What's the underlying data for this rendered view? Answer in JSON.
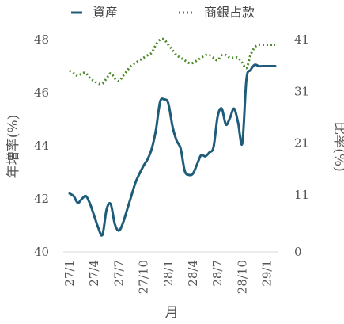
{
  "chart_data": {
    "type": "line",
    "xlabel": "月",
    "ylabel_left": "年増率(%)",
    "ylabel_right": "比率(%)",
    "x_tick_labels": [
      "27/1",
      "27/4",
      "27/7",
      "27/10",
      "28/1",
      "28/4",
      "28/7",
      "28/10",
      "29/1"
    ],
    "left_axis": {
      "min": 40,
      "max": 48,
      "ticks": [
        40,
        42,
        44,
        46,
        48
      ]
    },
    "right_axis": {
      "min": 0,
      "max": 41,
      "ticks": [
        0,
        11,
        21,
        31,
        41
      ]
    },
    "legend_position": "top",
    "grid": false,
    "series": [
      {
        "name": "資産",
        "axis": "left",
        "style": "solid",
        "color": "#1f5c7a",
        "x": [
          0,
          0.5,
          1,
          1.5,
          2,
          2.5,
          3,
          3.5,
          4,
          4.5,
          5,
          5.5,
          6,
          6.5,
          7,
          7.5,
          8,
          8.5,
          9,
          9.5,
          10,
          10.5,
          11,
          11.5,
          12,
          12.5,
          13,
          13.5,
          14,
          14.5,
          15,
          15.5,
          16,
          16.5,
          17,
          17.5,
          18,
          18.5,
          19,
          19.5,
          20,
          20.5,
          21,
          21.5,
          22,
          22.5,
          23,
          23.5,
          24,
          24.5,
          25
        ],
        "values": [
          42.2,
          42.1,
          41.85,
          42,
          42.1,
          41.8,
          41.35,
          40.9,
          40.65,
          41.6,
          41.8,
          41.05,
          40.8,
          41.1,
          41.6,
          42.1,
          42.6,
          42.95,
          43.25,
          43.5,
          43.9,
          44.6,
          45.65,
          45.75,
          45.6,
          44.75,
          44.2,
          43.9,
          43.05,
          42.9,
          42.95,
          43.3,
          43.65,
          43.6,
          43.75,
          43.95,
          45.1,
          45.4,
          44.8,
          45.05,
          45.4,
          44.85,
          44.1,
          46.5,
          46.85,
          47.05,
          47.0,
          47.0,
          47.0,
          47.0,
          47.0
        ]
      },
      {
        "name": "商銀占款",
        "axis": "right",
        "style": "dotted",
        "color": "#4e8a2b",
        "x": [
          0,
          0.5,
          1,
          1.5,
          2,
          2.5,
          3,
          3.5,
          4,
          4.5,
          5,
          5.5,
          6,
          6.5,
          7,
          7.5,
          8,
          8.5,
          9,
          9.5,
          10,
          10.5,
          11,
          11.5,
          12,
          12.5,
          13,
          13.5,
          14,
          14.5,
          15,
          15.5,
          16,
          16.5,
          17,
          17.5,
          18,
          18.5,
          19,
          19.5,
          20,
          20.5,
          21,
          21.5,
          22,
          22.5,
          23,
          23.5,
          24,
          24.5,
          25
        ],
        "values": [
          35,
          34.5,
          34,
          34.5,
          34.5,
          33.5,
          33,
          32.5,
          32.5,
          33.5,
          34.5,
          33.5,
          33,
          34,
          35,
          36,
          36.5,
          37,
          37.5,
          38,
          38.5,
          40,
          41,
          41,
          40,
          39,
          38,
          37.5,
          37,
          36.5,
          36.5,
          37,
          37.5,
          38,
          38,
          37.5,
          37,
          38,
          38,
          37.5,
          37.5,
          37.5,
          36.5,
          35.5,
          38,
          39.5,
          40,
          40,
          40,
          40,
          40
        ]
      }
    ]
  }
}
